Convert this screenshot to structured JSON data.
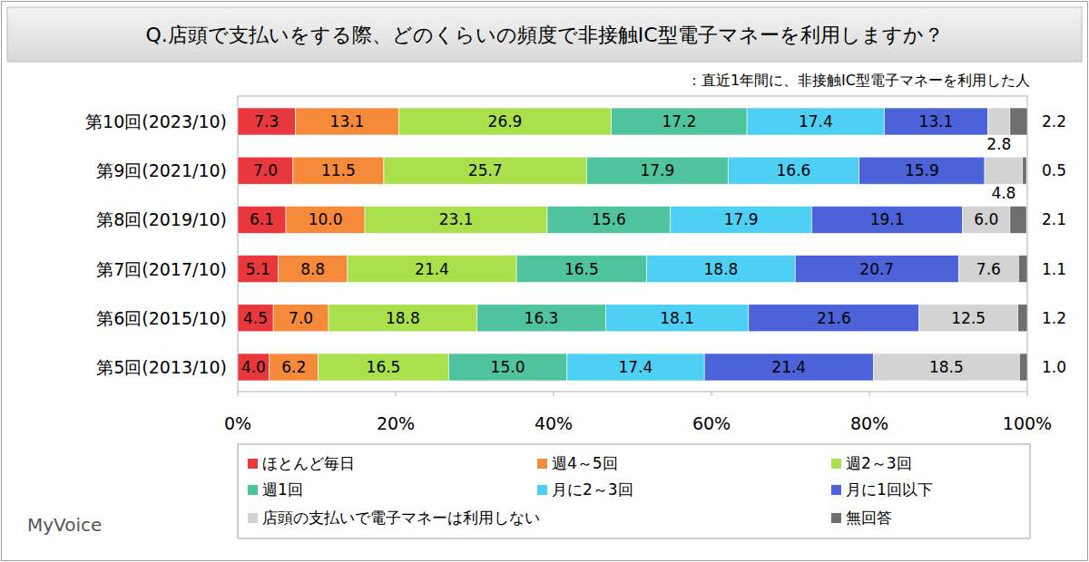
{
  "chart_data": {
    "type": "bar",
    "orientation": "horizontal",
    "stacked": true,
    "data_labels": true,
    "grid": false,
    "title": "Q.店頭で支払いをする際、どのくらいの頻度で非接触IC型電子マネーを利用しますか？",
    "subtitle": "：直近1年間に、非接触IC型電子マネーを利用した人",
    "annotation": "MyVoice",
    "legend": "bottom",
    "categories": [
      "第10回(2023/10)",
      "第9回(2021/10)",
      "第8回(2019/10)",
      "第7回(2017/10)",
      "第6回(2015/10)",
      "第5回(2013/10)"
    ],
    "xlim": [
      0,
      100
    ],
    "xticks": [
      {
        "value": 0,
        "label": "0%"
      },
      {
        "value": 20,
        "label": "20%"
      },
      {
        "value": 40,
        "label": "40%"
      },
      {
        "value": 60,
        "label": "60%"
      },
      {
        "value": 80,
        "label": "80%"
      },
      {
        "value": 100,
        "label": "100%"
      }
    ],
    "series": [
      {
        "name": "ほとんど毎日",
        "color": "#e8383d",
        "values": [
          7.3,
          7.0,
          6.1,
          5.1,
          4.5,
          4.0
        ],
        "value_labels": [
          "7.3",
          "7.0",
          "6.1",
          "5.1",
          "4.5",
          "4.0"
        ]
      },
      {
        "name": "週4～5回",
        "color": "#f48a3a",
        "values": [
          13.1,
          11.5,
          10.0,
          8.8,
          7.0,
          6.2
        ],
        "value_labels": [
          "13.1",
          "11.5",
          "10.0",
          "8.8",
          "7.0",
          "6.2"
        ]
      },
      {
        "name": "週2～3回",
        "color": "#a9e04c",
        "values": [
          26.9,
          25.7,
          23.1,
          21.4,
          18.8,
          16.5
        ],
        "value_labels": [
          "26.9",
          "25.7",
          "23.1",
          "21.4",
          "18.8",
          "16.5"
        ]
      },
      {
        "name": "週1回",
        "color": "#4fc39d",
        "values": [
          17.2,
          17.9,
          15.6,
          16.5,
          16.3,
          15.0
        ],
        "value_labels": [
          "17.2",
          "17.9",
          "15.6",
          "16.5",
          "16.3",
          "15.0"
        ]
      },
      {
        "name": "月に2～3回",
        "color": "#4ed0f4",
        "values": [
          17.4,
          16.6,
          17.9,
          18.8,
          18.1,
          17.4
        ],
        "value_labels": [
          "17.4",
          "16.6",
          "17.9",
          "18.8",
          "18.1",
          "17.4"
        ]
      },
      {
        "name": "月に1回以下",
        "color": "#4b62d8",
        "values": [
          13.1,
          15.9,
          19.1,
          20.7,
          21.6,
          21.4
        ],
        "value_labels": [
          "13.1",
          "15.9",
          "19.1",
          "20.7",
          "21.6",
          "21.4"
        ]
      },
      {
        "name": "店頭の支払いで電子マネーは利用しない",
        "color": "#d3d3d3",
        "values": [
          2.8,
          4.8,
          6.0,
          7.6,
          12.5,
          18.5
        ],
        "value_labels": [
          "2.8",
          "4.8",
          "6.0",
          "7.6",
          "12.5",
          "18.5"
        ]
      },
      {
        "name": "無回答",
        "color": "#6e6e6e",
        "values": [
          2.2,
          0.5,
          2.1,
          1.1,
          1.2,
          1.0
        ],
        "value_labels": [
          "2.2",
          "0.5",
          "2.1",
          "1.1",
          "1.2",
          "1.0"
        ]
      }
    ]
  }
}
